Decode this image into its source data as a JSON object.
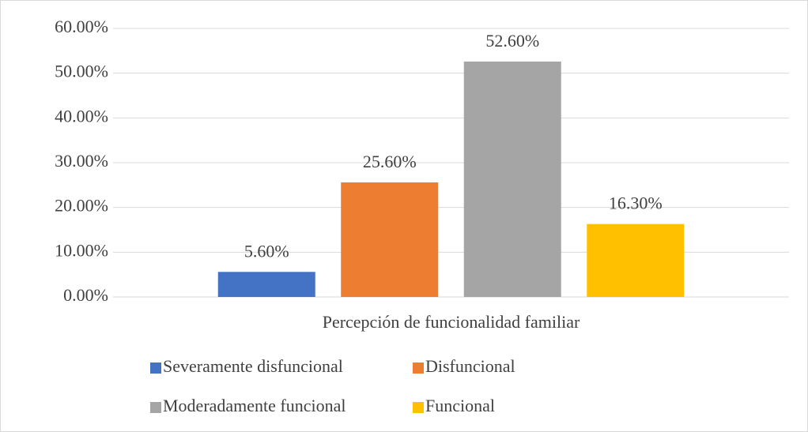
{
  "chart_data": {
    "type": "bar",
    "categories": [
      "Percepción de funcionalidad familiar"
    ],
    "series": [
      {
        "name": "Severamente disfuncional",
        "color": "#4472c4",
        "values": [
          5.6
        ],
        "value_labels": [
          "5.60%"
        ]
      },
      {
        "name": "Disfuncional",
        "color": "#ed7d31",
        "values": [
          25.6
        ],
        "value_labels": [
          "25.60%"
        ]
      },
      {
        "name": "Moderadamente funcional",
        "color": "#a5a5a5",
        "values": [
          52.6
        ],
        "value_labels": [
          "52.60%"
        ]
      },
      {
        "name": "Funcional",
        "color": "#ffc000",
        "values": [
          16.3
        ],
        "value_labels": [
          "16.30%"
        ]
      }
    ],
    "ylim": [
      0,
      60
    ],
    "yticks": [
      {
        "value": 0,
        "label": "0.00%"
      },
      {
        "value": 10,
        "label": "10.00%"
      },
      {
        "value": 20,
        "label": "20.00%"
      },
      {
        "value": 30,
        "label": "30.00%"
      },
      {
        "value": 40,
        "label": "40.00%"
      },
      {
        "value": 50,
        "label": "50.00%"
      },
      {
        "value": 60,
        "label": "60.00%"
      }
    ],
    "grid": true,
    "legend": "bottom"
  }
}
